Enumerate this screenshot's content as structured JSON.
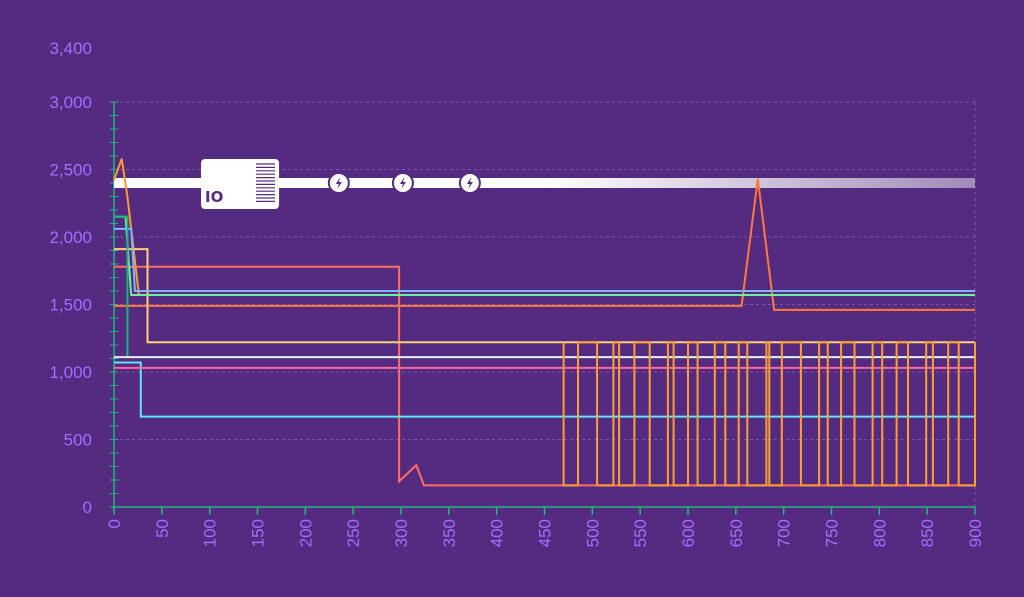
{
  "chart_data": {
    "type": "line",
    "title": "",
    "xlabel": "",
    "ylabel": "",
    "xlim": [
      0,
      900
    ],
    "ylim": [
      0,
      3400
    ],
    "x_ticks": [
      "0",
      "50",
      "100",
      "150",
      "200",
      "250",
      "300",
      "350",
      "400",
      "450",
      "500",
      "550",
      "600",
      "650",
      "700",
      "750",
      "800",
      "850",
      "900"
    ],
    "y_ticks": [
      "0",
      "500",
      "1,000",
      "1,500",
      "2,000",
      "2,500",
      "3,000",
      "3,400"
    ],
    "grid": true,
    "legend": "none",
    "background": "#542b80",
    "axis_color": "#1fb87a",
    "tick_color": "#a66bff",
    "io_track": {
      "label": "IO",
      "value": 2400,
      "x_start": 0,
      "x_end": 900,
      "events": [
        235,
        302,
        372
      ]
    },
    "series": [
      {
        "color": "#ff6e61",
        "points": [
          [
            0,
            1780
          ],
          [
            298,
            1780
          ],
          [
            298,
            190
          ],
          [
            316,
            310
          ],
          [
            324,
            160
          ],
          [
            900,
            160
          ]
        ]
      },
      {
        "color": "#ff9a2e",
        "points": [
          [
            0,
            2420
          ],
          [
            8,
            2580
          ],
          [
            14,
            2300
          ],
          [
            26,
            1570
          ],
          [
            900,
            1570
          ]
        ]
      },
      {
        "color": "#ff7a3a",
        "points": [
          [
            0,
            1490
          ],
          [
            656,
            1490
          ],
          [
            673,
            2430
          ],
          [
            690,
            1460
          ],
          [
            900,
            1460
          ]
        ]
      },
      {
        "color": "#ffd27a",
        "points": [
          [
            0,
            1910
          ],
          [
            35,
            1910
          ],
          [
            35,
            1220
          ],
          [
            900,
            1220
          ]
        ]
      },
      {
        "color": "#7db3ff",
        "points": [
          [
            0,
            2060
          ],
          [
            18,
            2060
          ],
          [
            22,
            1600
          ],
          [
            900,
            1600
          ]
        ]
      },
      {
        "color": "#6ef0a0",
        "points": [
          [
            0,
            2150
          ],
          [
            12,
            2150
          ],
          [
            18,
            1570
          ],
          [
            900,
            1570
          ]
        ]
      },
      {
        "color": "#23b078",
        "points": [
          [
            0,
            2150
          ],
          [
            14,
            2150
          ],
          [
            14,
            1110
          ],
          [
            900,
            1110
          ]
        ]
      },
      {
        "color": "#5ee6ff",
        "points": [
          [
            0,
            1070
          ],
          [
            28,
            1070
          ],
          [
            28,
            670
          ],
          [
            900,
            670
          ]
        ]
      },
      {
        "color": "#ff66a3",
        "points": [
          [
            0,
            1030
          ],
          [
            900,
            1030
          ]
        ]
      },
      {
        "color": "#e8e8f0",
        "points": [
          [
            0,
            1110
          ],
          [
            900,
            1110
          ]
        ]
      }
    ],
    "pulse_series": {
      "color": "#ff9f2e",
      "low": 160,
      "high": 1220,
      "pulses": [
        [
          470,
          485
        ],
        [
          505,
          522
        ],
        [
          528,
          544
        ],
        [
          560,
          579
        ],
        [
          585,
          600
        ],
        [
          610,
          628
        ],
        [
          639,
          653
        ],
        [
          662,
          682
        ],
        [
          685,
          698
        ],
        [
          718,
          737
        ],
        [
          746,
          760
        ],
        [
          774,
          793
        ],
        [
          803,
          818
        ],
        [
          830,
          849
        ],
        [
          856,
          872
        ],
        [
          883,
          900
        ]
      ]
    }
  }
}
